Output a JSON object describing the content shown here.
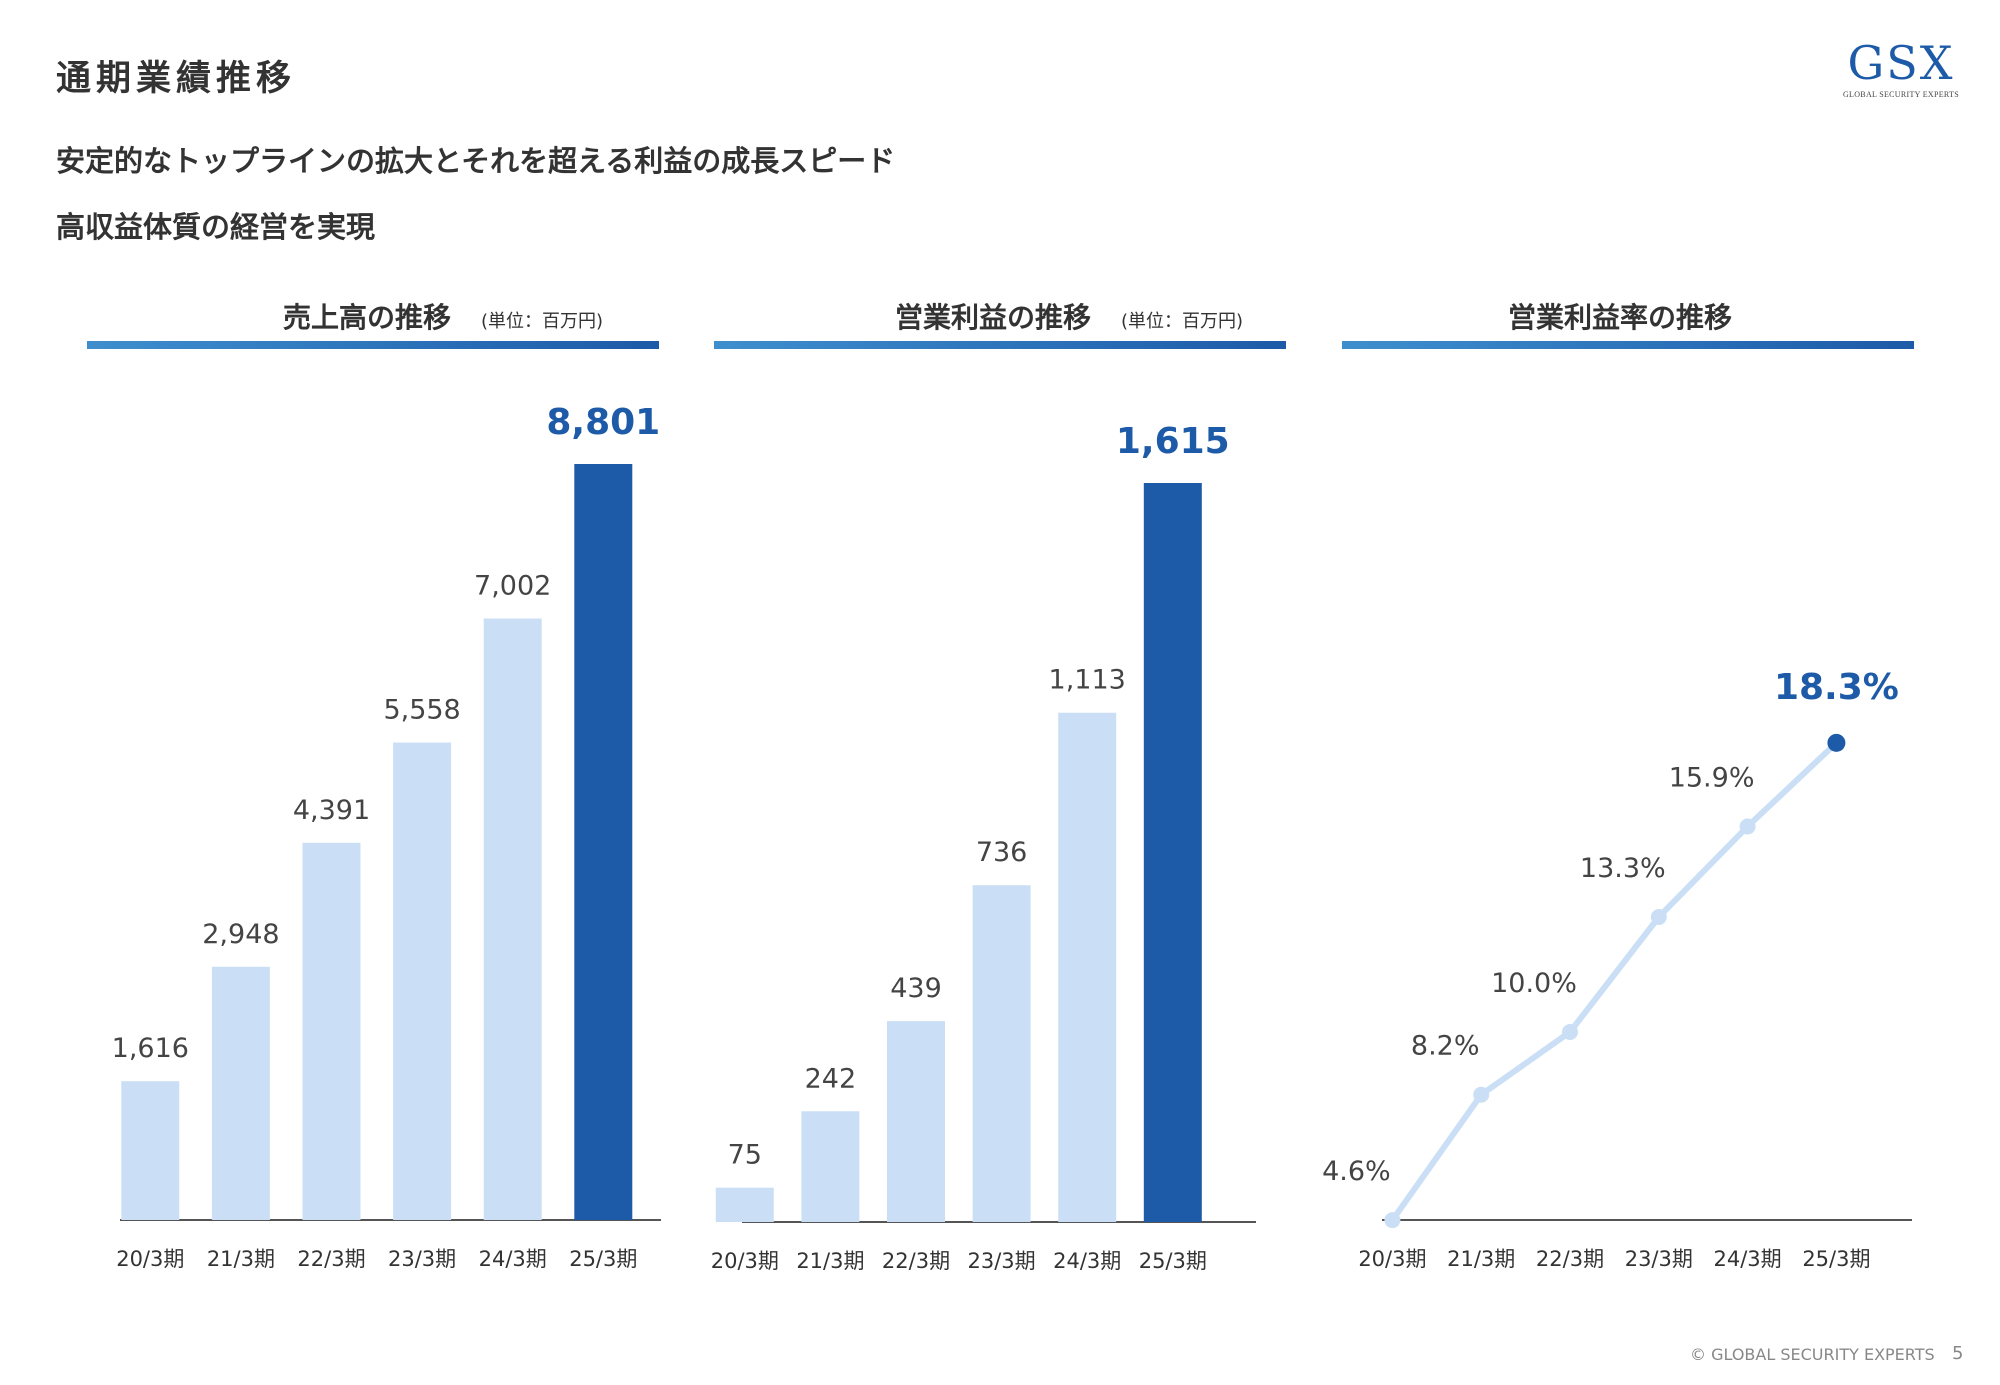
{
  "header": {
    "title": "通期業績推移",
    "subtitle_line1": "安定的なトップラインの拡大とそれを超える利益の成長スピード",
    "subtitle_line2": "高収益体質の経営を実現"
  },
  "logo": {
    "mark": "GSX",
    "tagline": "GLOBAL SECURITY EXPERTS"
  },
  "footer": {
    "copyright": "© GLOBAL SECURITY EXPERTS",
    "page_number": "5"
  },
  "colors": {
    "bar_light": "#cadff5",
    "bar_highlight": "#1d5aa8",
    "line": "#cadff5",
    "axis": "#555555"
  },
  "chart_data": [
    {
      "type": "bar",
      "title": "売上高の推移",
      "unit": "(単位：百万円)",
      "categories": [
        "20/3期",
        "21/3期",
        "22/3期",
        "23/3期",
        "24/3期",
        "25/3期"
      ],
      "values": [
        1616,
        2948,
        4391,
        5558,
        7002,
        8801
      ],
      "labels": [
        "1,616",
        "2,948",
        "4,391",
        "5,558",
        "7,002",
        "8,801"
      ],
      "highlight_index": 5
    },
    {
      "type": "bar",
      "title": "営業利益の推移",
      "unit": "(単位：百万円)",
      "categories": [
        "20/3期",
        "21/3期",
        "22/3期",
        "23/3期",
        "24/3期",
        "25/3期"
      ],
      "values": [
        75,
        242,
        439,
        736,
        1113,
        1615
      ],
      "labels": [
        "75",
        "242",
        "439",
        "736",
        "1,113",
        "1,615"
      ],
      "highlight_index": 5
    },
    {
      "type": "line",
      "title": "営業利益率の推移",
      "categories": [
        "20/3期",
        "21/3期",
        "22/3期",
        "23/3期",
        "24/3期",
        "25/3期"
      ],
      "values": [
        4.6,
        8.2,
        10.0,
        13.3,
        15.9,
        18.3
      ],
      "labels": [
        "4.6%",
        "8.2%",
        "10.0%",
        "13.3%",
        "15.9%",
        "18.3%"
      ],
      "highlight_index": 5
    }
  ]
}
